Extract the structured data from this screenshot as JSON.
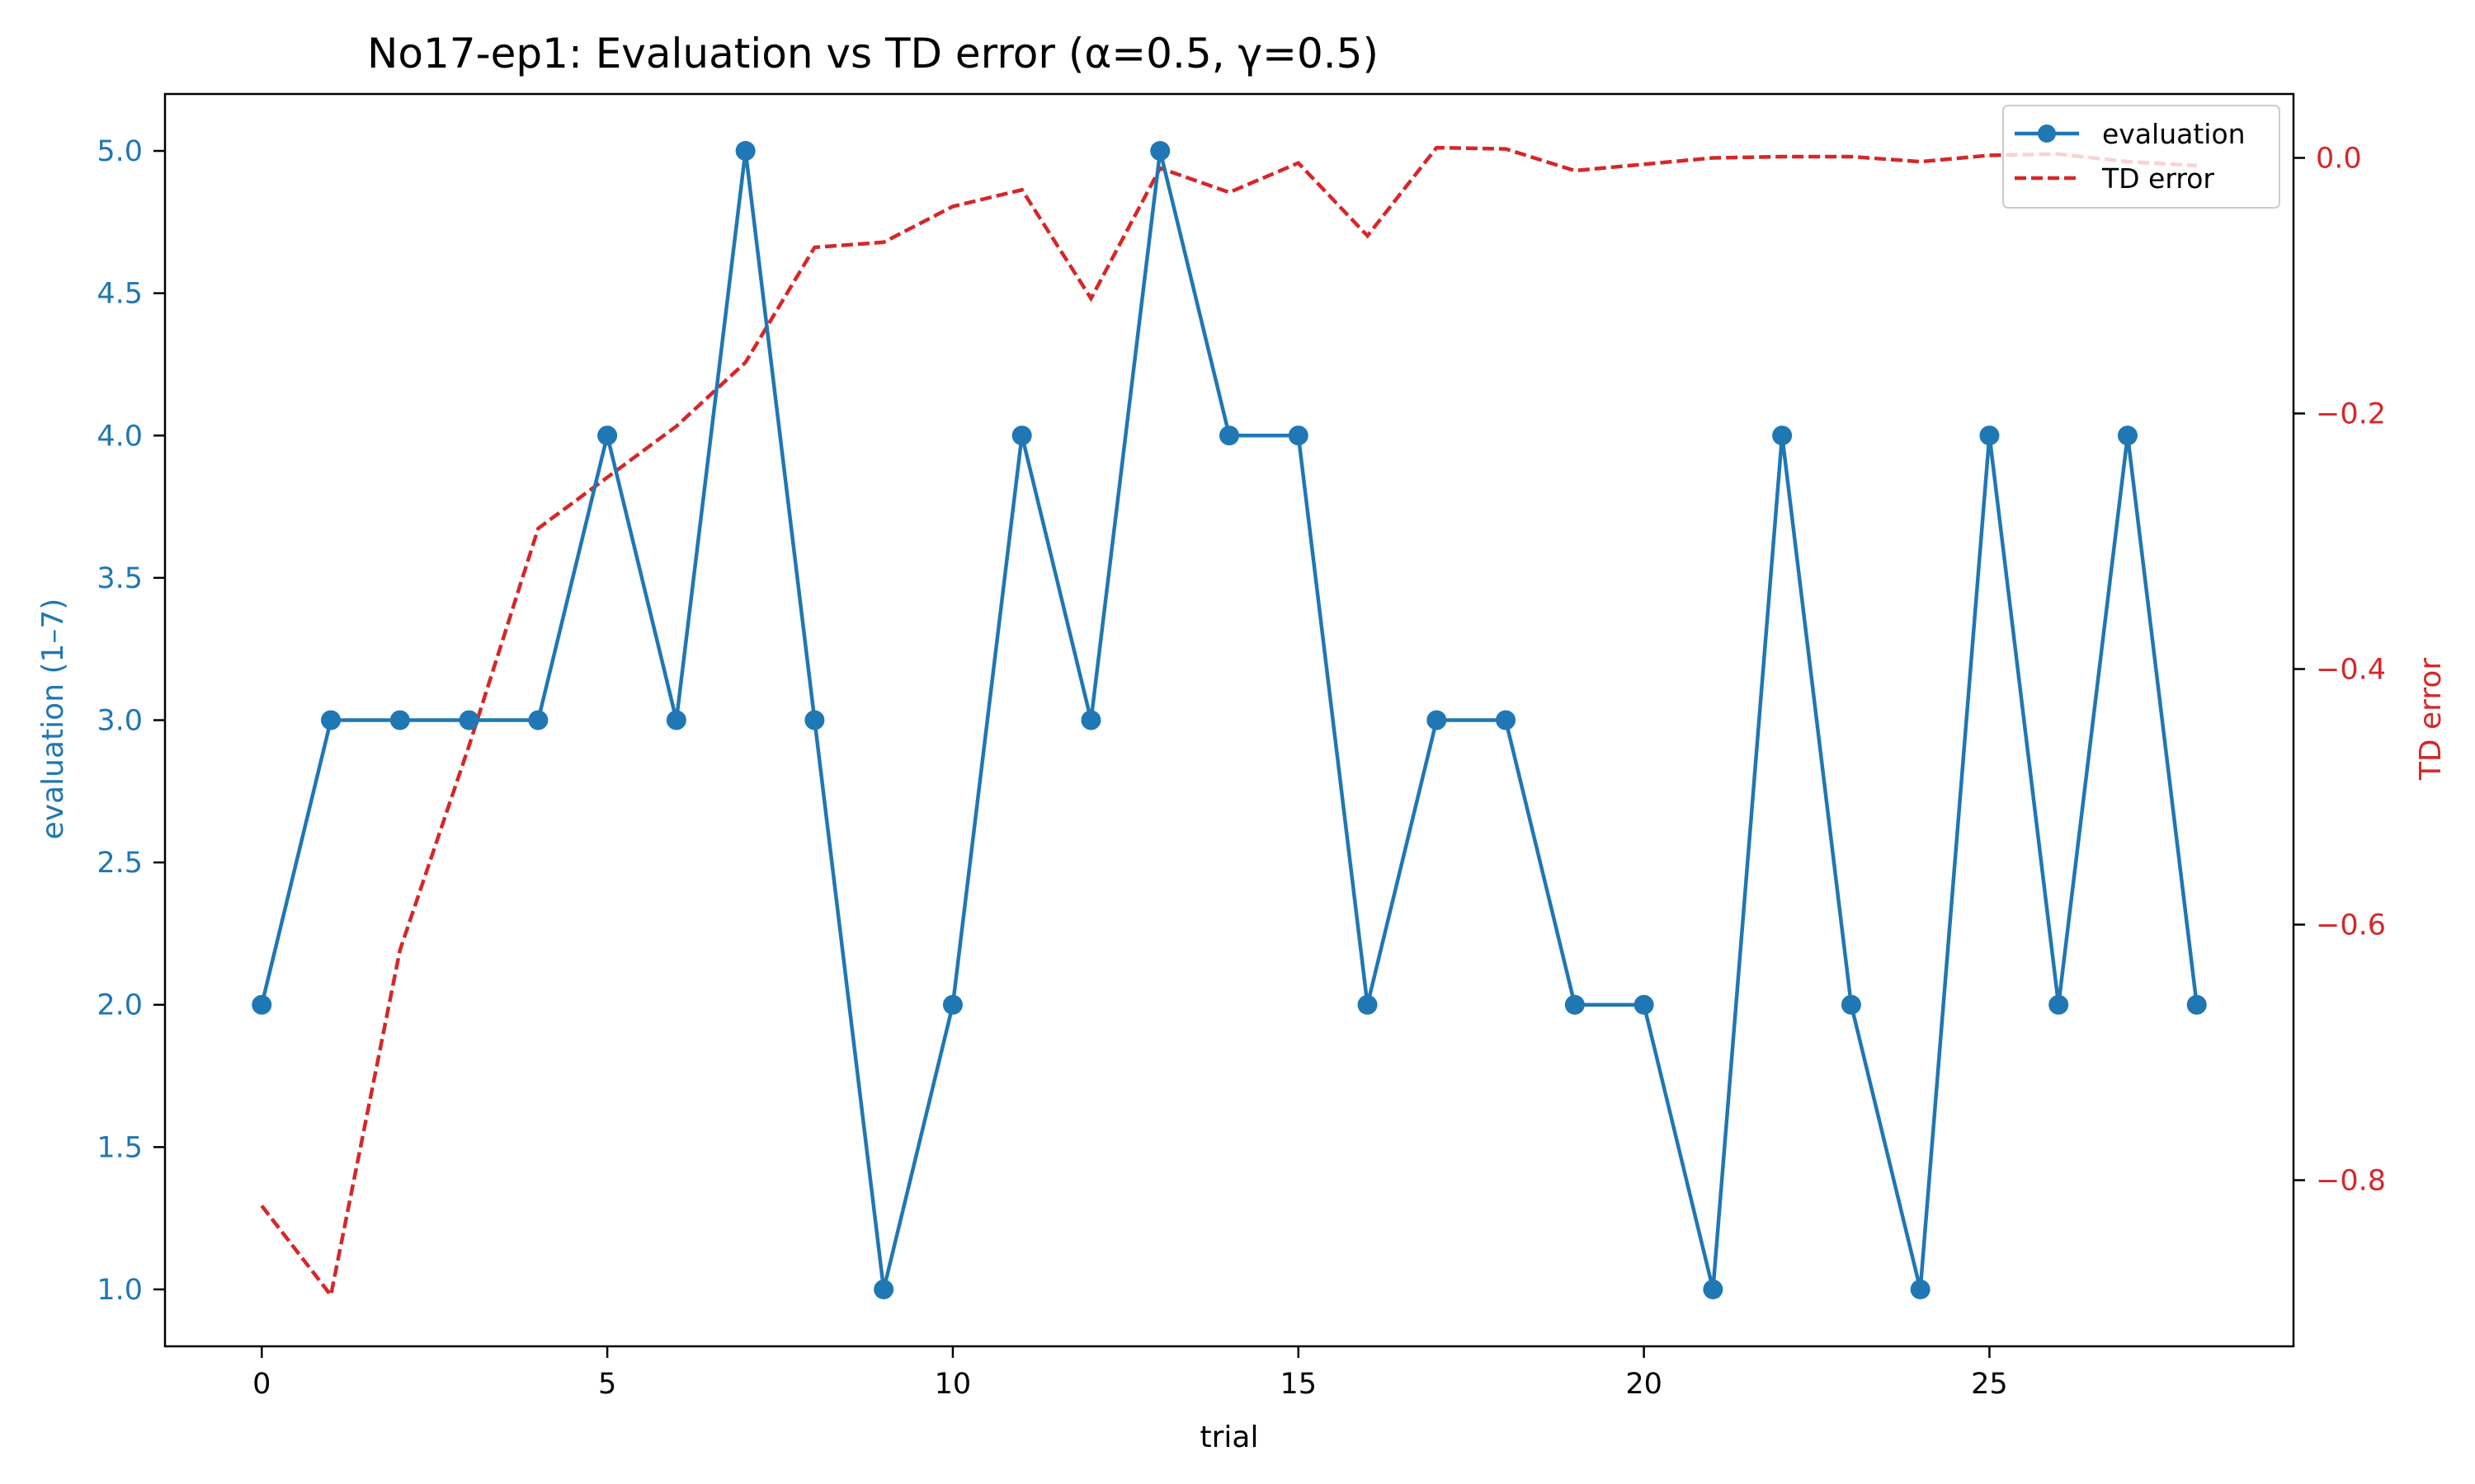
{
  "chart_data": {
    "type": "line",
    "title": "No17-ep1: Evaluation vs TD error (α=0.5, γ=0.5)",
    "xlabel": "trial",
    "ylabel": "evaluation (1–7)",
    "y2label": "TD error",
    "xlim": [
      -1.4,
      29.4
    ],
    "ylim": [
      0.8,
      5.2
    ],
    "y2lim": [
      -0.93,
      0.05
    ],
    "x_ticks": [
      0,
      5,
      10,
      15,
      20,
      25
    ],
    "x_tick_labels": [
      "0",
      "5",
      "10",
      "15",
      "20",
      "25"
    ],
    "y_ticks": [
      1.0,
      1.5,
      2.0,
      2.5,
      3.0,
      3.5,
      4.0,
      4.5,
      5.0
    ],
    "y_tick_labels": [
      "1.0",
      "1.5",
      "2.0",
      "2.5",
      "3.0",
      "3.5",
      "4.0",
      "4.5",
      "5.0"
    ],
    "y2_ticks": [
      -0.8,
      -0.6,
      -0.4,
      -0.2,
      0.0
    ],
    "y2_tick_labels": [
      "−0.8",
      "−0.6",
      "−0.4",
      "−0.2",
      "0.0"
    ],
    "grid": false,
    "legend_position": "top-right",
    "x": [
      0,
      1,
      2,
      3,
      4,
      5,
      6,
      7,
      8,
      9,
      10,
      11,
      12,
      13,
      14,
      15,
      16,
      17,
      18,
      19,
      20,
      21,
      22,
      23,
      24,
      25,
      26,
      27,
      28
    ],
    "series": [
      {
        "name": "evaluation",
        "axis": "left",
        "color": "#1f77b4",
        "style": "solid-with-markers",
        "values": [
          2,
          3,
          3,
          3,
          3,
          4,
          3,
          5,
          3,
          1,
          2,
          4,
          3,
          5,
          4,
          4,
          2,
          3,
          3,
          2,
          2,
          1,
          4,
          2,
          1,
          4,
          2,
          4,
          2
        ]
      },
      {
        "name": "TD error",
        "axis": "right",
        "color": "#d62728",
        "style": "dashed",
        "values": [
          -0.82,
          -0.89,
          -0.62,
          -0.46,
          -0.29,
          -0.25,
          -0.21,
          -0.16,
          -0.07,
          -0.066,
          -0.038,
          -0.025,
          -0.11,
          -0.008,
          -0.027,
          -0.004,
          -0.061,
          0.008,
          0.007,
          -0.01,
          -0.005,
          0.0,
          0.001,
          0.001,
          -0.003,
          0.002,
          0.003,
          -0.003,
          -0.006
        ]
      }
    ]
  }
}
